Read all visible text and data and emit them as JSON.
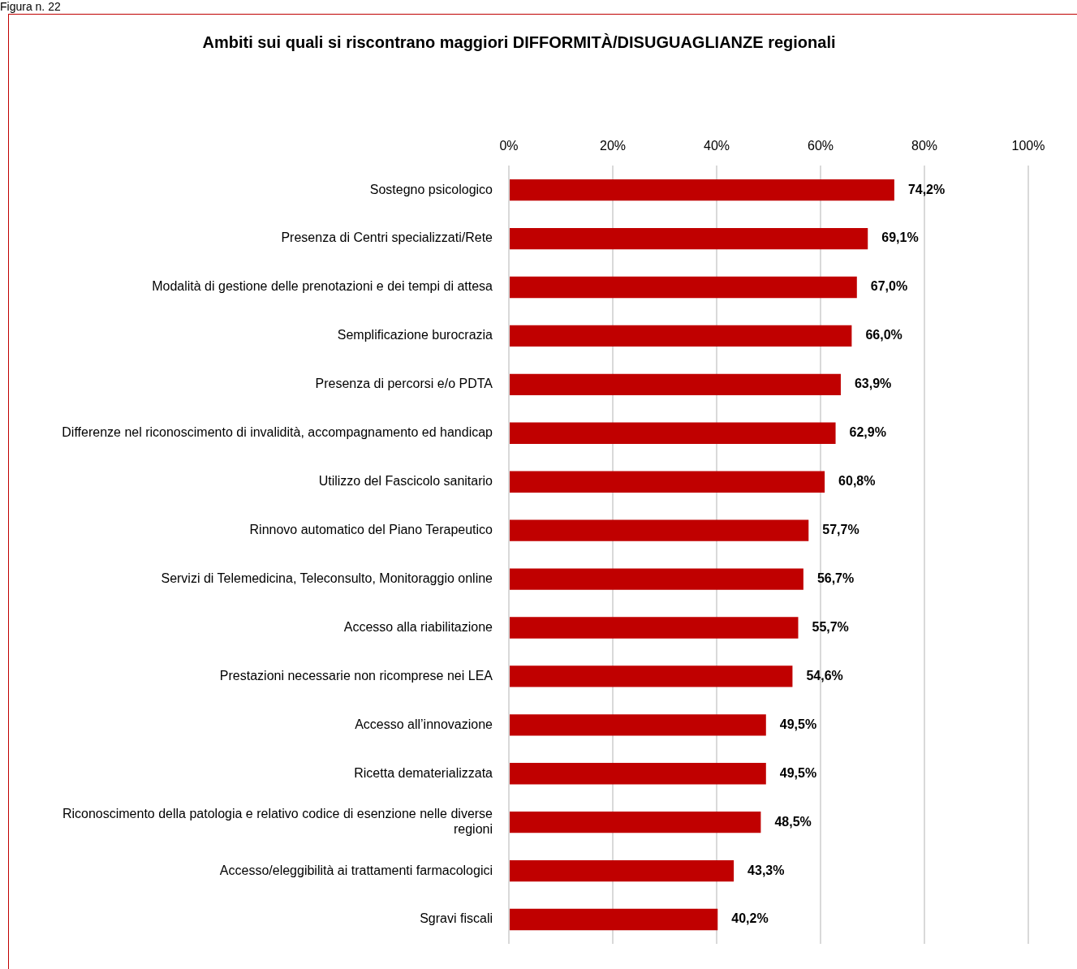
{
  "chart_data": {
    "type": "bar",
    "orientation": "horizontal",
    "title": "Ambiti sui quali si riscontrano maggiori DIFFORMITÀ/DISUGUAGLIANZE regionali",
    "annotations": [
      "Figura n. 22"
    ],
    "categories": [
      "Sostegno psicologico",
      "Presenza di Centri specializzati/Rete",
      "Modalità di gestione delle prenotazioni e dei tempi di attesa",
      "Semplificazione burocrazia",
      "Presenza di percorsi e/o PDTA",
      "Differenze nel riconoscimento di invalidità, accompagnamento ed handicap",
      "Utilizzo del Fascicolo sanitario",
      "Rinnovo automatico del Piano Terapeutico",
      "Servizi di Telemedicina, Teleconsulto, Monitoraggio online",
      "Accesso alla riabilitazione",
      "Prestazioni necessarie non ricomprese nei LEA",
      "Accesso all’innovazione",
      "Ricetta dematerializzata",
      "Riconoscimento della patologia e relativo codice di esenzione nelle diverse regioni",
      "Accesso/eleggibilità ai trattamenti farmacologici",
      "Sgravi fiscali"
    ],
    "values": [
      74.2,
      69.1,
      67.0,
      66.0,
      63.9,
      62.9,
      60.8,
      57.7,
      56.7,
      55.7,
      54.6,
      49.5,
      49.5,
      48.5,
      43.3,
      40.2
    ],
    "value_labels": [
      "74,2%",
      "69,1%",
      "67,0%",
      "66,0%",
      "63,9%",
      "62,9%",
      "60,8%",
      "57,7%",
      "56,7%",
      "55,7%",
      "54,6%",
      "49,5%",
      "49,5%",
      "48,5%",
      "43,3%",
      "40,2%"
    ],
    "color": "#c00000",
    "xlim": [
      0,
      100
    ],
    "xticks": [
      {
        "value": 0,
        "label": "0%"
      },
      {
        "value": 20,
        "label": "20%"
      },
      {
        "value": 40,
        "label": "40%"
      },
      {
        "value": 60,
        "label": "60%"
      },
      {
        "value": 80,
        "label": "80%"
      },
      {
        "value": 100,
        "label": "100%"
      }
    ],
    "grid": "x",
    "legend": false
  }
}
